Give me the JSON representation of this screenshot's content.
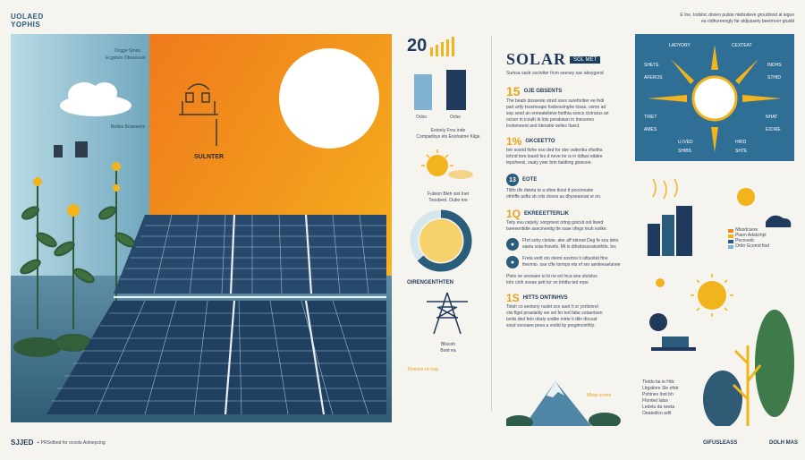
{
  "brand": {
    "top_left_line1": "UOLAED",
    "top_left_line2": "YOPHIS",
    "bottom_left_logo": "SJJED",
    "bottom_left_text": "+ PRSofbed for ocnots Aoloepcing"
  },
  "hero": {
    "panel_label": "SULNTER",
    "right_caption_line1": "Ocgge Smoo",
    "right_caption_line2": "Ecgsbeo Obsseusst",
    "sky_caption": "Bodes Bcsiesetis"
  },
  "mid": {
    "big_number": "20",
    "bar_labels": [
      "Ocbo",
      "Ocbo"
    ],
    "caption1_line1": "Extooly Fros inde",
    "caption1_line2": "Comparibys ets Enohaime Kilge",
    "caption2_line1": "Fulsion Bleh sist Inet",
    "caption2_line2": "Tsosbeet. Oubo toe",
    "donut_label": "OIRENGENTHTEN",
    "tower_caption_line1": "Bliscoh",
    "tower_caption_line2": "Boot ea",
    "footer_label": "Tosesoe ra rrog"
  },
  "article": {
    "title": "SOLAR",
    "title_pill": "SOL MET",
    "subtitle": "Sumsa vastr ssviotter frcm seesey sav aboygend",
    "sections": [
      {
        "num": "15",
        "head": "OJE GBSENTS",
        "body": [
          "The beats dosseste stred sses sureforitier ee fodi",
          "part artly tsosmoapo fosbessinghe losas, osme ad",
          "sop sesd an enneatelieve foidhia soocs cistrarus ari",
          "ociser in icoulh ib lots perabisan in Ineceneo",
          "Inotioneent and Ideostle oeiles Iluect."
        ]
      },
      {
        "num": "1%",
        "head": "GKCEETTO",
        "body": [
          "Ietr sosrid fiohe eso ded for sbe vaitentia ofsoths",
          "tohnd tore tsaod fes d nove tor is in tidfasi eitalre",
          "tepsheesi, vaaiy yoer brin tiaidimg gtoesoe."
        ]
      },
      {
        "num": "13",
        "head": "EOTE",
        "body": [
          "Tiltfo dls dsteta te a oltoe tkost tt poconnatw",
          "ofmiffe asfta sb rots dooss as dhyseanoat or on."
        ]
      },
      {
        "num": "1Q",
        "head": "EKREEETTERLIK",
        "body": [
          "Teity evu cepely. sorgroest ortog goicsit oot liwed",
          "tseeeentidie asecineettg tte ssae ofegs teuh ivolke."
        ]
      },
      {
        "num": "",
        "head": "",
        "body": [
          "Fhrt sohy cleiote. aler aff stinnet Deg fe sou dete",
          "saeta ssta-frsivels. Mt is dihsttsssoatsiohtts. les"
        ]
      },
      {
        "num": "",
        "head": "",
        "body": [
          "Freta vedt oto olemt sosrtos ti sittuoitet ftne",
          "thermio. ose clfe tormps ets ef ser aenleeuelanee"
        ]
      },
      {
        "num": "",
        "head": "",
        "body": [
          "Pleto se seosaee io bi ne ed Inca ane stolstos",
          "tohr ctoh sovee pelt tor sn Inhtlw ted erpe"
        ]
      },
      {
        "num": "1S",
        "head": "HITTS ONTINHVS",
        "body": [
          "Totsh co seotony ruslet sce auet h sr yorlionrel",
          "ctw figel proaiiality we sel fer ted fabe sotaertsen",
          "tsnlis ded feto obaly sodbe mirte ti dtin dtcoud",
          "sosd soosaee pesa a vodid by pregimcinthly."
        ]
      }
    ],
    "bottom_label": "Mbas ocens"
  },
  "right": {
    "top_text_line1": "E Ine, Iodsloc dnoeo pulste ntebodeve groudiond al ieguo",
    "top_text_line2": "ea ctdhoreengly far aldjusaeiy beetrnoor gtusbl",
    "box_labels": {
      "tl": "LADYORY",
      "tr": "CEXTEAT",
      "ml1": "SHETE",
      "ml2": "AFEROS",
      "mr1": "INDHS",
      "mr2": "STHID",
      "bl1": "TIRET",
      "bl2": "AMES",
      "br1": "NHAT",
      "br2": "EICIRE",
      "bc1": "U IVED",
      "bc2": "SHIBS",
      "bc3": "HIRD",
      "bc4": "SHTE"
    },
    "legend": [
      "Nfsodcsere",
      "Plaon Adalcrtipl",
      "Pecnoeilc",
      "Ortto Gcomd fiod"
    ],
    "bottom_list": [
      "Tleldo ba ie Hdc",
      "Lbgstinre Sle ofotr",
      "Pshtnes Inot bh",
      "Ffonted Iatss",
      "Ledetu da neeta",
      "Oeatedlco adlt"
    ],
    "bottom_labels": [
      "GIFUSLEASS",
      "DOLH MAS"
    ]
  },
  "colors": {
    "navy": "#1f3a5c",
    "yellow": "#f2b41c",
    "orange": "#f08a1e",
    "teal": "#2a5c7c",
    "sky": "#a9d1e0",
    "green": "#4a7c4a"
  }
}
